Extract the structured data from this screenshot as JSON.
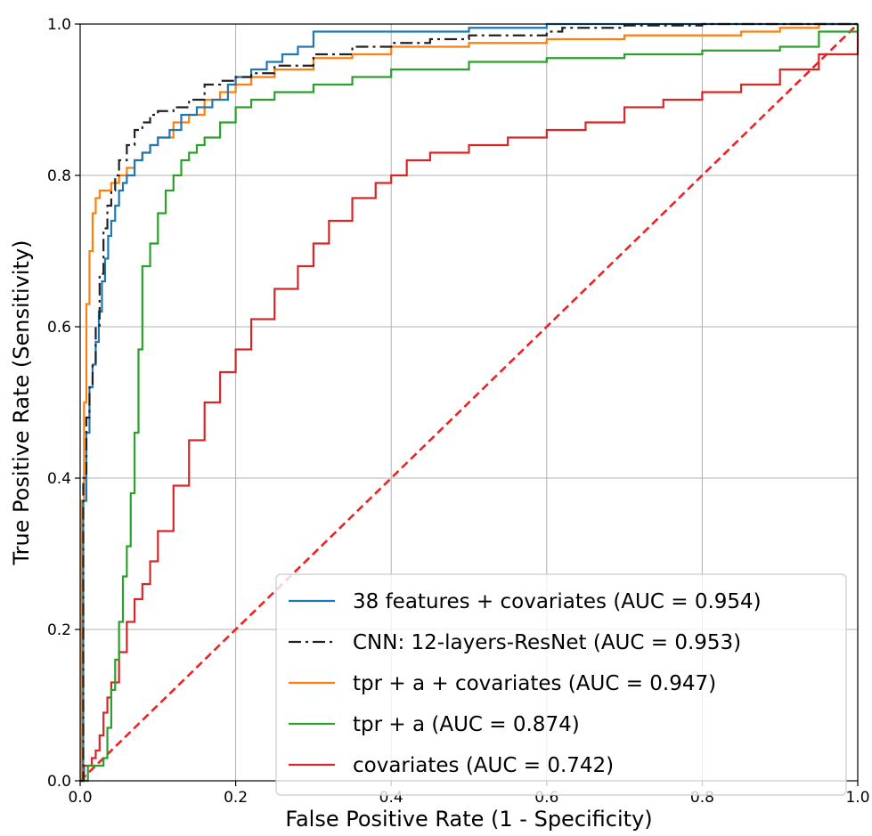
{
  "chart_data": {
    "type": "line",
    "title": "",
    "xlabel": "False Positive Rate (1 - Specificity)",
    "ylabel": "True Positive Rate (Sensitivity)",
    "xlim": [
      0,
      1
    ],
    "ylim": [
      0,
      1
    ],
    "xticks": [
      "0.0",
      "0.2",
      "0.4",
      "0.6",
      "0.8",
      "1.0"
    ],
    "yticks": [
      "0.0",
      "0.2",
      "0.4",
      "0.6",
      "0.8",
      "1.0"
    ],
    "grid": true,
    "legend_position": "lower-right",
    "series": [
      {
        "name": "38 features + covariates (AUC = 0.954)",
        "color": "#1f77b4",
        "style": "solid",
        "x": [
          0,
          0.004,
          0.008,
          0.012,
          0.016,
          0.02,
          0.024,
          0.028,
          0.032,
          0.036,
          0.04,
          0.045,
          0.05,
          0.055,
          0.06,
          0.07,
          0.08,
          0.09,
          0.1,
          0.115,
          0.13,
          0.15,
          0.17,
          0.19,
          0.2,
          0.22,
          0.24,
          0.26,
          0.28,
          0.3,
          0.35,
          0.4,
          0.5,
          0.6,
          0.7,
          0.8,
          0.9,
          1.0
        ],
        "y": [
          0,
          0.37,
          0.46,
          0.52,
          0.55,
          0.58,
          0.62,
          0.66,
          0.69,
          0.72,
          0.74,
          0.76,
          0.78,
          0.79,
          0.8,
          0.82,
          0.83,
          0.84,
          0.85,
          0.86,
          0.88,
          0.89,
          0.9,
          0.92,
          0.93,
          0.94,
          0.95,
          0.96,
          0.97,
          0.99,
          0.99,
          0.99,
          0.995,
          1.0,
          1.0,
          1.0,
          1.0,
          1.0
        ]
      },
      {
        "name": "CNN: 12-layers-ResNet (AUC = 0.953)",
        "color": "#222222",
        "style": "dashdot",
        "x": [
          0,
          0.004,
          0.008,
          0.012,
          0.016,
          0.02,
          0.025,
          0.03,
          0.035,
          0.04,
          0.045,
          0.05,
          0.06,
          0.07,
          0.08,
          0.09,
          0.1,
          0.12,
          0.14,
          0.16,
          0.18,
          0.2,
          0.22,
          0.25,
          0.3,
          0.35,
          0.4,
          0.45,
          0.5,
          0.6,
          0.62,
          0.7,
          0.8,
          0.9,
          1.0
        ],
        "y": [
          0,
          0.4,
          0.48,
          0.52,
          0.55,
          0.6,
          0.67,
          0.73,
          0.76,
          0.78,
          0.8,
          0.82,
          0.84,
          0.86,
          0.87,
          0.88,
          0.885,
          0.89,
          0.9,
          0.92,
          0.925,
          0.93,
          0.935,
          0.945,
          0.96,
          0.97,
          0.975,
          0.98,
          0.985,
          0.99,
          0.995,
          0.998,
          1.0,
          1.0,
          1.0
        ]
      },
      {
        "name": "tpr + a + covariates (AUC = 0.947)",
        "color": "#ff7f0e",
        "style": "solid",
        "x": [
          0,
          0.002,
          0.005,
          0.008,
          0.012,
          0.016,
          0.02,
          0.025,
          0.03,
          0.04,
          0.05,
          0.06,
          0.07,
          0.08,
          0.09,
          0.1,
          0.12,
          0.13,
          0.14,
          0.16,
          0.18,
          0.2,
          0.22,
          0.25,
          0.3,
          0.35,
          0.4,
          0.5,
          0.6,
          0.7,
          0.8,
          0.85,
          0.9,
          0.95,
          1.0
        ],
        "y": [
          0,
          0.37,
          0.5,
          0.63,
          0.7,
          0.75,
          0.77,
          0.78,
          0.78,
          0.79,
          0.8,
          0.81,
          0.82,
          0.83,
          0.84,
          0.85,
          0.87,
          0.87,
          0.88,
          0.9,
          0.91,
          0.92,
          0.93,
          0.94,
          0.955,
          0.96,
          0.97,
          0.975,
          0.98,
          0.985,
          0.985,
          0.99,
          0.995,
          1.0,
          1.0
        ]
      },
      {
        "name": "tpr + a (AUC = 0.874)",
        "color": "#2ca02c",
        "style": "solid",
        "x": [
          0,
          0.01,
          0.02,
          0.03,
          0.035,
          0.04,
          0.045,
          0.05,
          0.055,
          0.06,
          0.065,
          0.07,
          0.075,
          0.08,
          0.09,
          0.1,
          0.11,
          0.12,
          0.13,
          0.14,
          0.15,
          0.16,
          0.18,
          0.2,
          0.22,
          0.25,
          0.3,
          0.35,
          0.4,
          0.5,
          0.6,
          0.7,
          0.8,
          0.9,
          0.95,
          1.0
        ],
        "y": [
          0,
          0.02,
          0.02,
          0.03,
          0.07,
          0.12,
          0.16,
          0.21,
          0.27,
          0.31,
          0.38,
          0.46,
          0.57,
          0.68,
          0.71,
          0.75,
          0.78,
          0.8,
          0.82,
          0.83,
          0.84,
          0.85,
          0.87,
          0.89,
          0.9,
          0.91,
          0.92,
          0.93,
          0.94,
          0.95,
          0.955,
          0.96,
          0.965,
          0.97,
          0.99,
          1.0
        ]
      },
      {
        "name": "covariates (AUC = 0.742)",
        "color": "#d62728",
        "style": "solid",
        "x": [
          0,
          0.005,
          0.01,
          0.015,
          0.02,
          0.025,
          0.03,
          0.035,
          0.04,
          0.05,
          0.06,
          0.07,
          0.08,
          0.09,
          0.1,
          0.12,
          0.14,
          0.16,
          0.18,
          0.2,
          0.22,
          0.25,
          0.28,
          0.3,
          0.32,
          0.35,
          0.38,
          0.4,
          0.42,
          0.45,
          0.5,
          0.55,
          0.6,
          0.65,
          0.7,
          0.75,
          0.8,
          0.85,
          0.9,
          0.95,
          1.0
        ],
        "y": [
          0,
          0.02,
          0.02,
          0.03,
          0.04,
          0.06,
          0.09,
          0.11,
          0.13,
          0.17,
          0.21,
          0.24,
          0.26,
          0.29,
          0.33,
          0.39,
          0.45,
          0.5,
          0.54,
          0.57,
          0.61,
          0.65,
          0.68,
          0.71,
          0.74,
          0.77,
          0.79,
          0.8,
          0.82,
          0.83,
          0.84,
          0.85,
          0.86,
          0.87,
          0.89,
          0.9,
          0.91,
          0.92,
          0.94,
          0.96,
          1.0
        ]
      },
      {
        "name": "",
        "color": "#ee2222",
        "style": "dashed",
        "x": [
          0,
          1
        ],
        "y": [
          0,
          1
        ]
      }
    ]
  }
}
